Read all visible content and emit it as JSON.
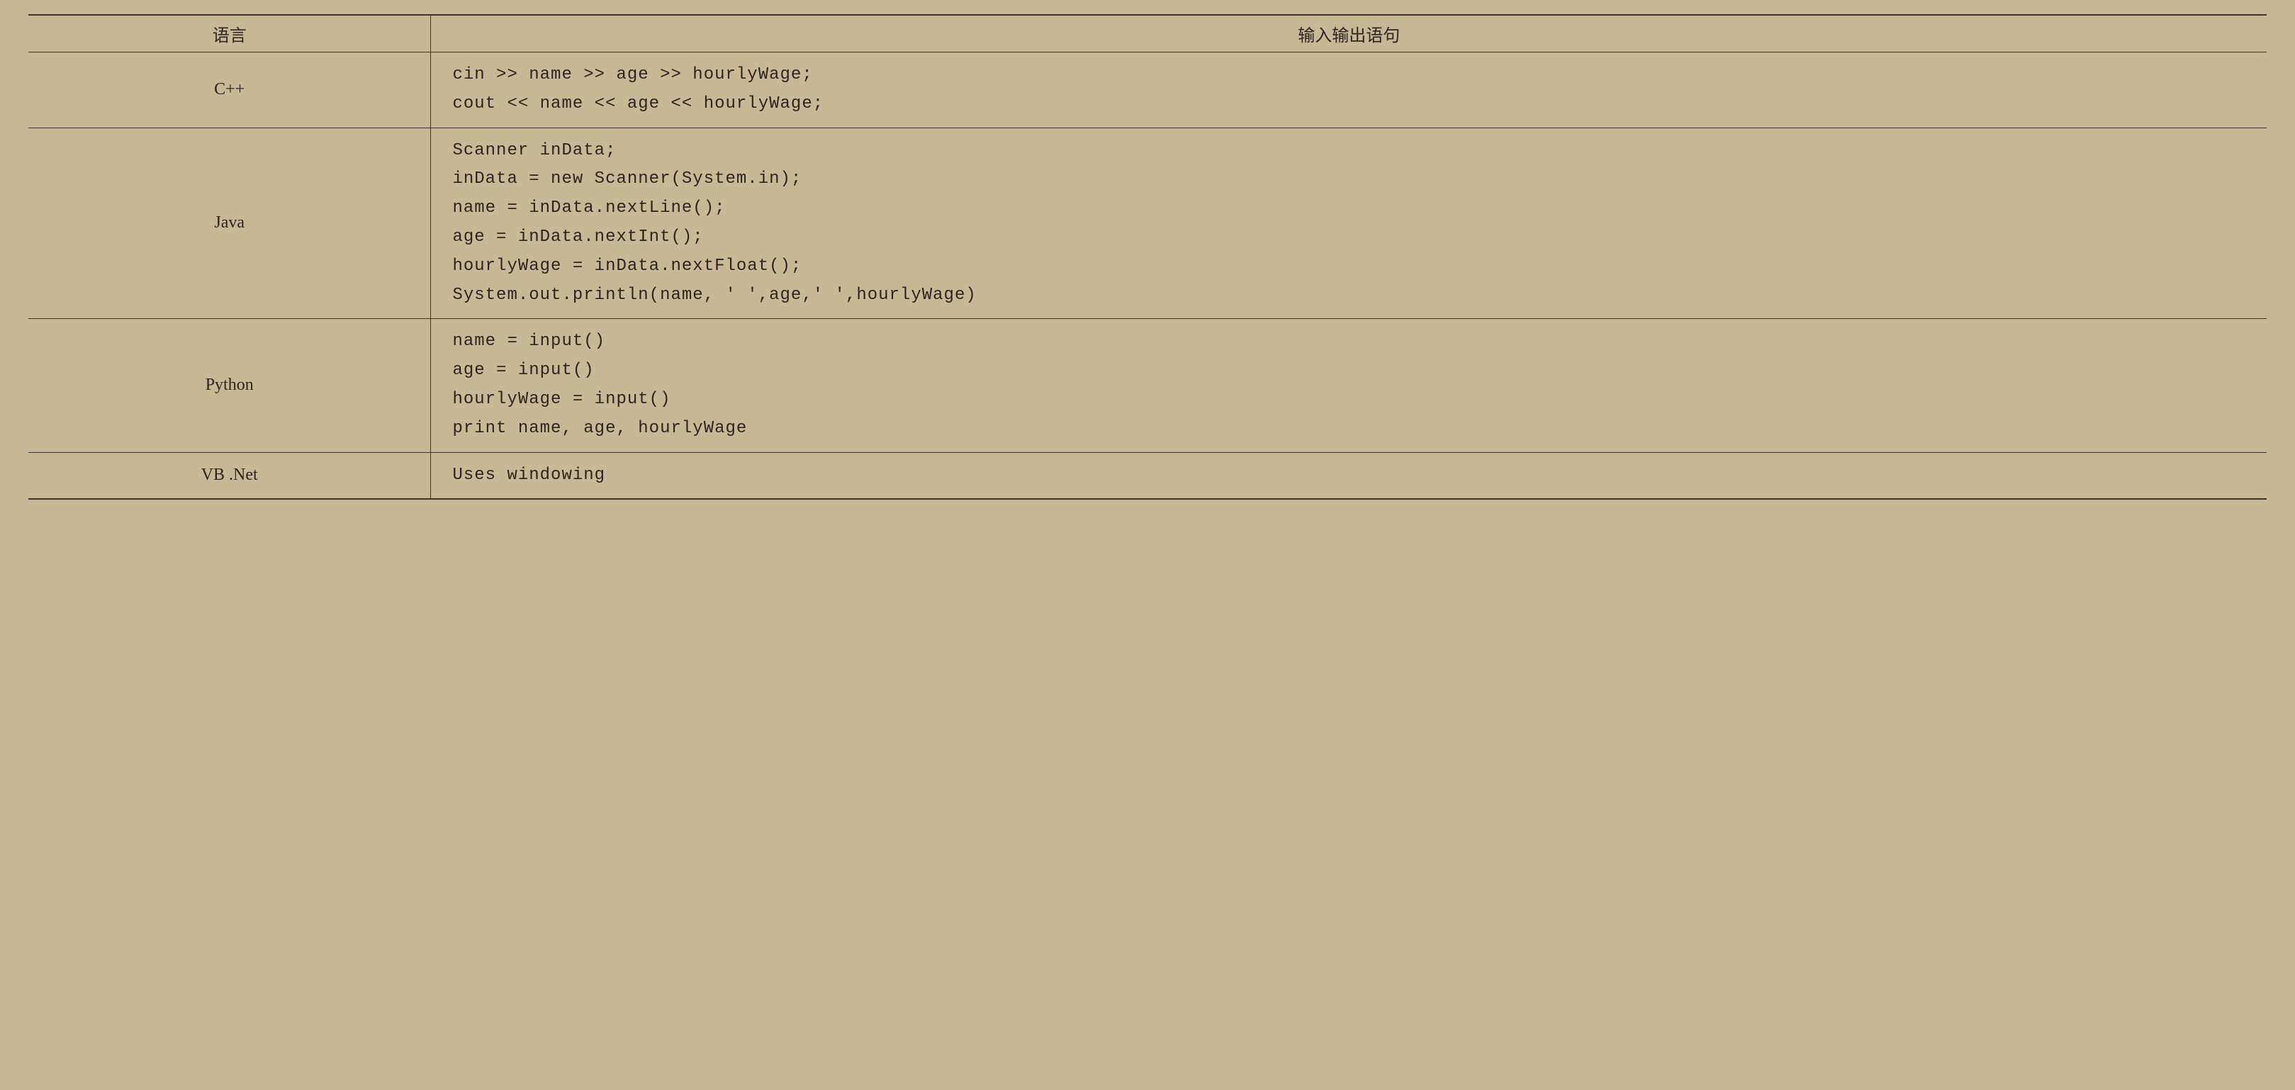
{
  "headers": {
    "language": "语言",
    "io_statement": "输入输出语句"
  },
  "rows": [
    {
      "language": "C++",
      "code_lines": [
        "cin >> name >> age >> hourlyWage;",
        "cout << name << age << hourlyWage;"
      ]
    },
    {
      "language": "Java",
      "code_lines": [
        "Scanner inData;",
        "inData = new Scanner(System.in);",
        "name = inData.nextLine();",
        "age = inData.nextInt();",
        "hourlyWage = inData.nextFloat();",
        "System.out.println(name, ' ',age,' ',hourlyWage)"
      ]
    },
    {
      "language": "Python",
      "code_lines": [
        "name = input()",
        "age = input()",
        "hourlyWage = input()",
        "print name, age, hourlyWage"
      ]
    },
    {
      "language": "VB .Net",
      "code_lines": [
        "Uses windowing"
      ]
    }
  ],
  "styling": {
    "background_color": "#c9b896",
    "text_color": "#2a2520",
    "border_color": "#3a3530",
    "header_font_family": "SimSun",
    "code_font_family": "Courier New",
    "font_size": 24,
    "col_lang_width_pct": 18,
    "col_code_width_pct": 82,
    "line_height": 1.7
  }
}
